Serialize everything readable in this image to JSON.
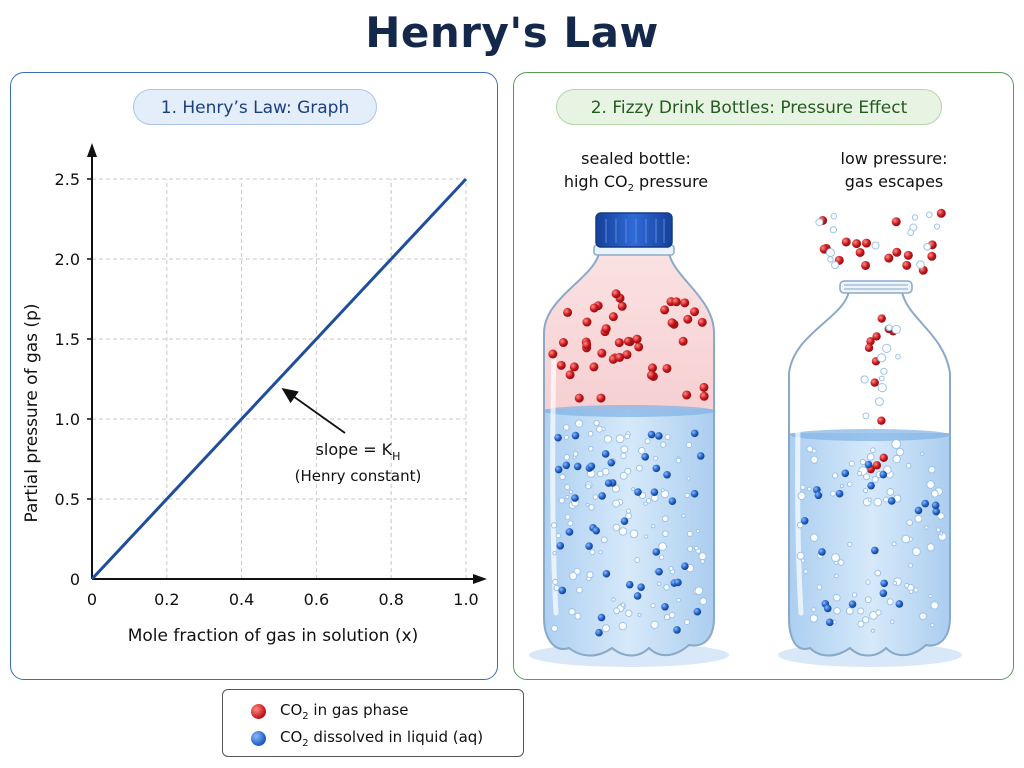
{
  "title": "Henry's Law",
  "left_panel": {
    "heading": "1. Henry’s Law: Graph",
    "annotation": {
      "line1_prefix": "slope = K",
      "line1_sub": "H",
      "line2": "(Henry constant)"
    }
  },
  "chart_data": {
    "type": "line",
    "xlabel": "Mole fraction of gas in solution (x)",
    "ylabel": "Partial pressure of gas (p)",
    "xlim": [
      0,
      1.0
    ],
    "ylim": [
      0,
      2.5
    ],
    "x_ticks": [
      "0",
      "0.2",
      "0.4",
      "0.6",
      "0.8",
      "1.0"
    ],
    "y_ticks": [
      "0",
      "0.5",
      "1.0",
      "1.5",
      "2.0",
      "2.5"
    ],
    "grid": true,
    "series": [
      {
        "x": [
          0,
          1.0
        ],
        "y": [
          0,
          2.5
        ],
        "color": "#1f4e9c"
      }
    ]
  },
  "right_panel": {
    "heading": "2. Fizzy Drink Bottles: Pressure Effect",
    "sealed": {
      "line1": "sealed bottle:",
      "line2_prefix": "high CO",
      "line2_sub": "2",
      "line2_suffix": " pressure"
    },
    "open": {
      "line1": "low pressure:",
      "line2": "gas escapes"
    }
  },
  "legend": {
    "gas": {
      "prefix": "CO",
      "sub": "2",
      "suffix": " in gas phase",
      "color": "#c4151b"
    },
    "dissolved": {
      "prefix": "CO",
      "sub": "2",
      "suffix": " dissolved in liquid (aq)",
      "color": "#1f5fc4"
    }
  },
  "colors": {
    "title": "#14284b",
    "line": "#1f4e9c",
    "left_border": "#3a6fb8",
    "right_border": "#5c9a5a",
    "cap": "#1d4fb3"
  }
}
